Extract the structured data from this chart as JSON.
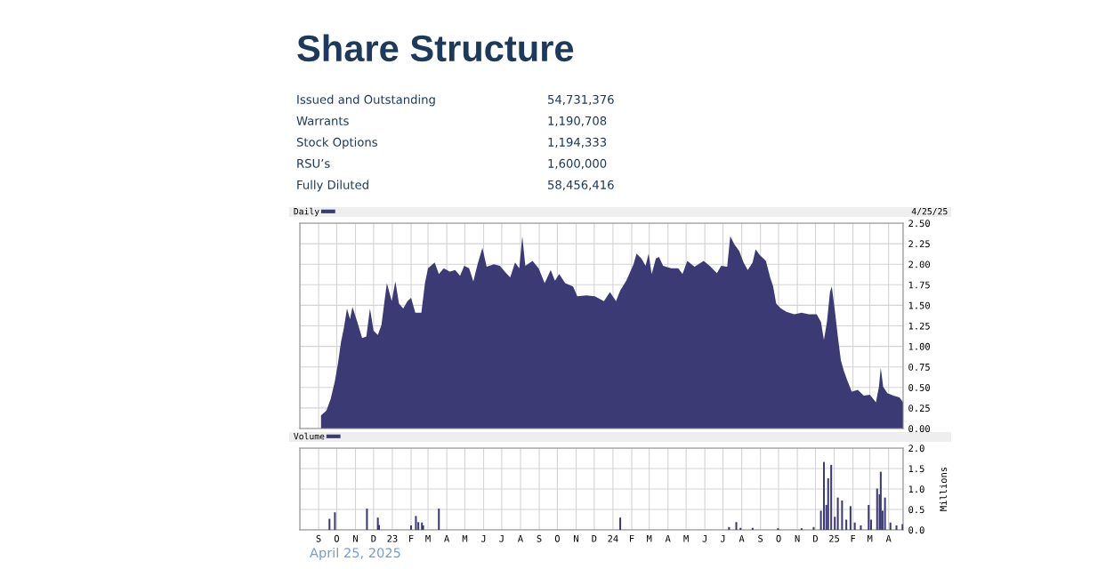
{
  "chart_data": [
    {
      "type": "other",
      "title": "Share Structure",
      "annotations": [
        "Issued and Outstanding",
        "54,731,376",
        "Warrants",
        "1,190,708",
        "Stock Options",
        "1,194,333",
        "RSU’s",
        "1,600,000",
        "Fully Diluted",
        "58,456,416"
      ]
    },
    {
      "type": "area",
      "annotations": [
        "4/25/25"
      ],
      "legend": "top left",
      "grid": true,
      "tick_labels": "y",
      "xlim": [
        "2022-08-01",
        "2025-04-25"
      ],
      "xticks": [
        {
          "value": "2022-09",
          "label": null
        },
        {
          "value": "2022-10",
          "label": null
        },
        {
          "value": "2022-11",
          "label": null
        },
        {
          "value": "2022-12",
          "label": null
        },
        {
          "value": "2023-01",
          "label": null
        },
        {
          "value": "2023-02",
          "label": null
        },
        {
          "value": "2023-03",
          "label": null
        },
        {
          "value": "2023-04",
          "label": null
        },
        {
          "value": "2023-05",
          "label": null
        },
        {
          "value": "2023-06",
          "label": null
        },
        {
          "value": "2023-07",
          "label": null
        },
        {
          "value": "2023-08",
          "label": null
        },
        {
          "value": "2023-09",
          "label": null
        },
        {
          "value": "2023-10",
          "label": null
        },
        {
          "value": "2023-11",
          "label": null
        },
        {
          "value": "2023-12",
          "label": null
        },
        {
          "value": "2024-01",
          "label": null
        },
        {
          "value": "2024-02",
          "label": null
        },
        {
          "value": "2024-03",
          "label": null
        },
        {
          "value": "2024-04",
          "label": null
        },
        {
          "value": "2024-05",
          "label": null
        },
        {
          "value": "2024-06",
          "label": null
        },
        {
          "value": "2024-07",
          "label": null
        },
        {
          "value": "2024-08",
          "label": null
        },
        {
          "value": "2024-09",
          "label": null
        },
        {
          "value": "2024-10",
          "label": null
        },
        {
          "value": "2024-11",
          "label": null
        },
        {
          "value": "2024-12",
          "label": null
        },
        {
          "value": "2025-01",
          "label": null
        },
        {
          "value": "2025-02",
          "label": null
        },
        {
          "value": "2025-03",
          "label": null
        },
        {
          "value": "2025-04",
          "label": null
        }
      ],
      "ylim": [
        0,
        2.5
      ],
      "yticks": [
        {
          "value": 0,
          "label": "0.00"
        },
        {
          "value": 0.25,
          "label": "0.25"
        },
        {
          "value": 0.5,
          "label": "0.50"
        },
        {
          "value": 0.75,
          "label": "0.75"
        },
        {
          "value": 1,
          "label": "1.00"
        },
        {
          "value": 1.25,
          "label": "1.25"
        },
        {
          "value": 1.5,
          "label": "1.50"
        },
        {
          "value": 1.75,
          "label": "1.75"
        },
        {
          "value": 2,
          "label": "2.00"
        },
        {
          "value": 2.25,
          "label": "2.25"
        },
        {
          "value": 2.5,
          "label": "2.50"
        }
      ],
      "series": [
        {
          "name": "Daily",
          "color": "#3c3a74",
          "x": [
            "2022-09-05",
            "2022-09-14",
            "2022-09-21",
            "2022-09-28",
            "2022-10-03",
            "2022-10-08",
            "2022-10-13",
            "2022-10-18",
            "2022-10-23",
            "2022-10-27",
            "2022-11-04",
            "2022-11-12",
            "2022-11-19",
            "2022-11-25",
            "2022-12-01",
            "2022-12-08",
            "2022-12-14",
            "2022-12-19",
            "2022-12-23",
            "2022-12-31",
            "2023-01-06",
            "2023-01-12",
            "2023-01-19",
            "2023-01-26",
            "2023-02-01",
            "2023-02-08",
            "2023-02-18",
            "2023-02-24",
            "2023-03-01",
            "2023-03-12",
            "2023-03-19",
            "2023-03-27",
            "2023-04-06",
            "2023-04-15",
            "2023-04-23",
            "2023-04-30",
            "2023-05-08",
            "2023-05-15",
            "2023-05-22",
            "2023-05-30",
            "2023-06-06",
            "2023-06-18",
            "2023-06-28",
            "2023-07-06",
            "2023-07-15",
            "2023-07-23",
            "2023-07-30",
            "2023-08-04",
            "2023-08-09",
            "2023-08-21",
            "2023-08-31",
            "2023-09-10",
            "2023-09-20",
            "2023-09-27",
            "2023-10-04",
            "2023-10-14",
            "2023-10-27",
            "2023-11-03",
            "2023-11-18",
            "2023-12-02",
            "2023-12-17",
            "2023-12-27",
            "2024-01-06",
            "2024-01-13",
            "2024-01-23",
            "2024-02-04",
            "2024-02-09",
            "2024-02-17",
            "2024-02-24",
            "2024-02-29",
            "2024-03-05",
            "2024-03-12",
            "2024-03-17",
            "2024-03-24",
            "2024-04-06",
            "2024-04-18",
            "2024-04-25",
            "2024-05-03",
            "2024-05-15",
            "2024-05-30",
            "2024-06-09",
            "2024-06-21",
            "2024-06-28",
            "2024-07-08",
            "2024-07-13",
            "2024-07-20",
            "2024-07-28",
            "2024-08-04",
            "2024-08-11",
            "2024-08-19",
            "2024-08-24",
            "2024-08-31",
            "2024-09-10",
            "2024-09-17",
            "2024-09-22",
            "2024-09-27",
            "2024-10-05",
            "2024-10-14",
            "2024-10-27",
            "2024-11-08",
            "2024-11-20",
            "2024-12-03",
            "2024-12-10",
            "2024-12-15",
            "2024-12-20",
            "2024-12-25",
            "2024-12-28",
            "2025-01-02",
            "2025-01-07",
            "2025-01-12",
            "2025-01-17",
            "2025-01-23",
            "2025-01-30",
            "2025-02-09",
            "2025-02-19",
            "2025-03-01",
            "2025-03-11",
            "2025-03-16",
            "2025-03-19",
            "2025-03-23",
            "2025-03-30",
            "2025-04-09",
            "2025-04-19",
            "2025-04-25"
          ],
          "values": [
            0.16,
            0.22,
            0.36,
            0.58,
            0.79,
            1.05,
            1.23,
            1.46,
            1.33,
            1.48,
            1.3,
            1.1,
            1.12,
            1.46,
            1.19,
            1.14,
            1.26,
            1.55,
            1.77,
            1.55,
            1.79,
            1.52,
            1.46,
            1.55,
            1.59,
            1.41,
            1.41,
            1.77,
            1.95,
            2.02,
            1.88,
            1.95,
            1.91,
            1.93,
            1.86,
            1.98,
            1.95,
            1.79,
            2.0,
            2.2,
            1.97,
            2.0,
            1.98,
            1.91,
            1.84,
            2.02,
            1.95,
            2.34,
            1.98,
            2.04,
            1.95,
            1.77,
            1.93,
            1.8,
            1.88,
            1.77,
            1.73,
            1.61,
            1.62,
            1.61,
            1.55,
            1.66,
            1.55,
            1.68,
            1.8,
            2.0,
            2.13,
            2.07,
            1.98,
            2.13,
            1.88,
            2.07,
            2.09,
            1.98,
            1.95,
            1.95,
            1.88,
            2.04,
            1.97,
            2.04,
            1.98,
            1.89,
            1.98,
            1.97,
            2.34,
            2.24,
            2.16,
            2.02,
            1.93,
            2.02,
            2.18,
            2.11,
            2.04,
            1.84,
            1.73,
            1.52,
            1.46,
            1.42,
            1.39,
            1.41,
            1.39,
            1.39,
            1.3,
            1.08,
            1.3,
            1.66,
            1.73,
            1.44,
            1.12,
            0.83,
            0.7,
            0.58,
            0.45,
            0.47,
            0.4,
            0.41,
            0.32,
            0.51,
            0.74,
            0.51,
            0.43,
            0.4,
            0.38,
            0.32
          ]
        }
      ]
    },
    {
      "type": "bar",
      "ylabel": "Millions",
      "legend": "top left",
      "grid": true,
      "xlim": [
        "2022-08-01",
        "2025-04-25"
      ],
      "xticks": [
        {
          "value": "2022-09",
          "label": "S"
        },
        {
          "value": "2022-10",
          "label": "O"
        },
        {
          "value": "2022-11",
          "label": "N"
        },
        {
          "value": "2022-12",
          "label": "D"
        },
        {
          "value": "2023-01",
          "label": "23"
        },
        {
          "value": "2023-02",
          "label": "F"
        },
        {
          "value": "2023-03",
          "label": "M"
        },
        {
          "value": "2023-04",
          "label": "A"
        },
        {
          "value": "2023-05",
          "label": "M"
        },
        {
          "value": "2023-06",
          "label": "J"
        },
        {
          "value": "2023-07",
          "label": "J"
        },
        {
          "value": "2023-08",
          "label": "A"
        },
        {
          "value": "2023-09",
          "label": "S"
        },
        {
          "value": "2023-10",
          "label": "O"
        },
        {
          "value": "2023-11",
          "label": "N"
        },
        {
          "value": "2023-12",
          "label": "D"
        },
        {
          "value": "2024-01",
          "label": "24"
        },
        {
          "value": "2024-02",
          "label": "F"
        },
        {
          "value": "2024-03",
          "label": "M"
        },
        {
          "value": "2024-04",
          "label": "A"
        },
        {
          "value": "2024-05",
          "label": "M"
        },
        {
          "value": "2024-06",
          "label": "J"
        },
        {
          "value": "2024-07",
          "label": "J"
        },
        {
          "value": "2024-08",
          "label": "A"
        },
        {
          "value": "2024-09",
          "label": "S"
        },
        {
          "value": "2024-10",
          "label": "O"
        },
        {
          "value": "2024-11",
          "label": "N"
        },
        {
          "value": "2024-12",
          "label": "D"
        },
        {
          "value": "2025-01",
          "label": "25"
        },
        {
          "value": "2025-02",
          "label": "F"
        },
        {
          "value": "2025-03",
          "label": "M"
        },
        {
          "value": "2025-04",
          "label": "A"
        }
      ],
      "ylim": [
        0,
        2.0
      ],
      "yticks": [
        {
          "value": 0,
          "label": "0.0"
        },
        {
          "value": 0.5,
          "label": "0.5"
        },
        {
          "value": 1,
          "label": "1.0"
        },
        {
          "value": 1.5,
          "label": "1.5"
        },
        {
          "value": 2,
          "label": "2.0"
        }
      ],
      "series": [
        {
          "name": "Volume",
          "color": "#3c3a74",
          "x": [
            "2022-09-19",
            "2022-09-28",
            "2022-11-20",
            "2022-12-08",
            "2022-12-10",
            "2023-02-01",
            "2023-02-09",
            "2023-02-13",
            "2023-02-19",
            "2023-02-21",
            "2023-03-19",
            "2024-01-13",
            "2024-07-11",
            "2024-07-23",
            "2024-07-30",
            "2024-08-19",
            "2024-09-30",
            "2024-11-08",
            "2024-11-28",
            "2024-12-10",
            "2024-12-15",
            "2024-12-19",
            "2024-12-22",
            "2024-12-27",
            "2025-01-02",
            "2025-01-07",
            "2025-01-14",
            "2025-01-21",
            "2025-01-28",
            "2025-02-04",
            "2025-02-14",
            "2025-02-27",
            "2025-03-03",
            "2025-03-13",
            "2025-03-17",
            "2025-03-19",
            "2025-03-22",
            "2025-03-26",
            "2025-04-04",
            "2025-04-14",
            "2025-04-24"
          ],
          "values": [
            0.27,
            0.43,
            0.52,
            0.3,
            0.12,
            0.11,
            0.34,
            0.19,
            0.18,
            0.11,
            0.52,
            0.3,
            0.07,
            0.19,
            0.05,
            0.05,
            0.04,
            0.04,
            0.07,
            0.47,
            1.66,
            0.61,
            1.26,
            1.59,
            0.32,
            0.79,
            0.72,
            0.25,
            0.58,
            0.18,
            0.11,
            0.61,
            0.25,
            1.01,
            0.87,
            1.42,
            0.47,
            0.79,
            0.18,
            0.11,
            0.14
          ]
        }
      ]
    },
    {
      "type": "other",
      "annotations": [
        "April 25, 2025"
      ]
    }
  ]
}
